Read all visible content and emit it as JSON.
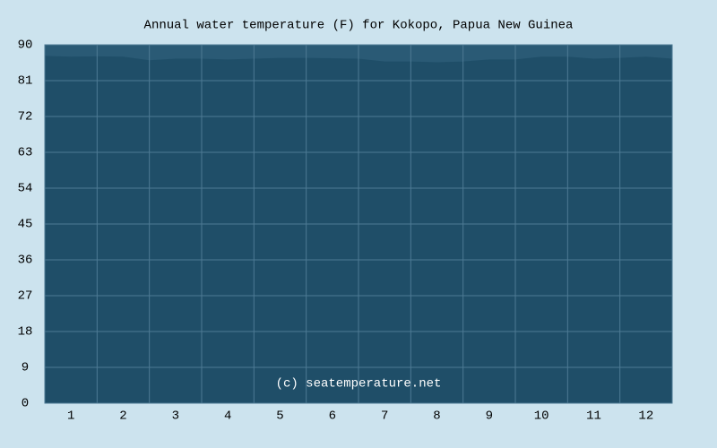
{
  "chart_data": {
    "type": "area",
    "title": "Annual water temperature (F) for Kokopo, Papua New Guinea",
    "annotation": "(c) seatemperature.net",
    "x": [
      0.5,
      1,
      1.5,
      2,
      2.5,
      3,
      3.5,
      4,
      4.5,
      5,
      5.5,
      6,
      6.5,
      7,
      7.5,
      8,
      8.5,
      9,
      9.5,
      10,
      10.5,
      11,
      11.5,
      12,
      12.5
    ],
    "values": [
      87.1,
      86.9,
      87.0,
      86.9,
      86.0,
      86.4,
      86.4,
      86.2,
      86.4,
      86.6,
      86.6,
      86.5,
      86.4,
      85.7,
      85.7,
      85.5,
      85.7,
      86.2,
      86.2,
      86.9,
      86.9,
      86.4,
      86.6,
      86.9,
      86.4
    ],
    "color": "#1f4e68",
    "xlim": [
      0.5,
      12.5
    ],
    "xticks": [
      1,
      2,
      3,
      4,
      5,
      6,
      7,
      8,
      9,
      10,
      11,
      12
    ],
    "ylim": [
      0,
      90
    ],
    "yticks": [
      0,
      9,
      18,
      27,
      36,
      45,
      54,
      63,
      72,
      81,
      90
    ],
    "grid": true
  }
}
